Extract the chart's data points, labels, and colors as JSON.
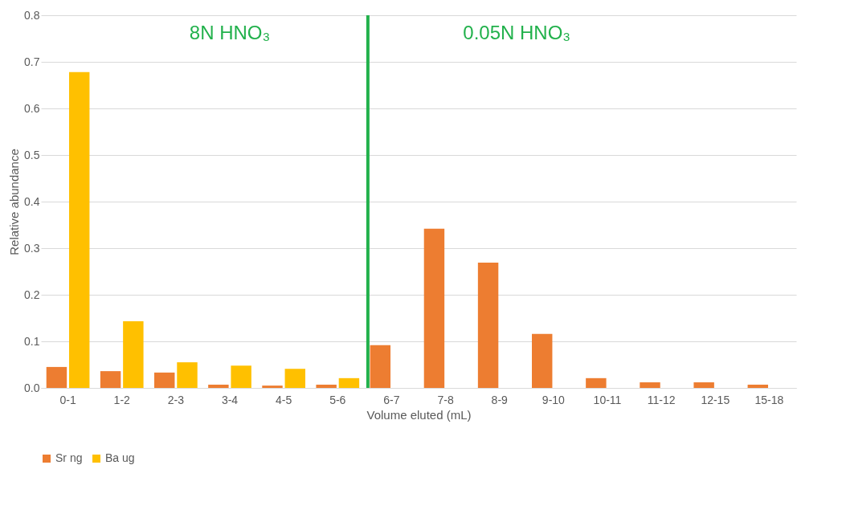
{
  "chart_data": {
    "type": "bar",
    "xlabel": "Volume eluted (mL)",
    "ylabel": "Relative abundance",
    "categories": [
      "0-1",
      "1-2",
      "2-3",
      "3-4",
      "4-5",
      "5-6",
      "6-7",
      "7-8",
      "8-9",
      "9-10",
      "10-11",
      "11-12",
      "12-15",
      "15-18"
    ],
    "series": [
      {
        "name": "Sr ng",
        "color": "#ed7d31",
        "values": [
          0.045,
          0.036,
          0.033,
          0.007,
          0.005,
          0.007,
          0.092,
          0.342,
          0.269,
          0.116,
          0.021,
          0.012,
          0.012,
          0.007
        ]
      },
      {
        "name": "Ba ug",
        "color": "#ffc000",
        "values": [
          0.678,
          0.143,
          0.055,
          0.048,
          0.041,
          0.021,
          0,
          0,
          0,
          0,
          0,
          0,
          0,
          0
        ]
      }
    ],
    "ylim": [
      0,
      0.8
    ],
    "yticks": [
      {
        "value": 0,
        "label": "0.0"
      },
      {
        "value": 0.1,
        "label": "0.1"
      },
      {
        "value": 0.2,
        "label": "0.2"
      },
      {
        "value": 0.3,
        "label": "0.3"
      },
      {
        "value": 0.4,
        "label": "0.4"
      },
      {
        "value": 0.5,
        "label": "0.5"
      },
      {
        "value": 0.6,
        "label": "0.6"
      },
      {
        "value": 0.7,
        "label": "0.7"
      },
      {
        "value": 0.8,
        "label": "0.8"
      }
    ],
    "grid": "y",
    "legend": "bottom",
    "ref_lines": [
      {
        "axis": "x",
        "value": "6-7",
        "color": "#22b14c"
      }
    ],
    "annotations": [
      "8N HNO₃",
      "0.05N HNO₃"
    ]
  }
}
